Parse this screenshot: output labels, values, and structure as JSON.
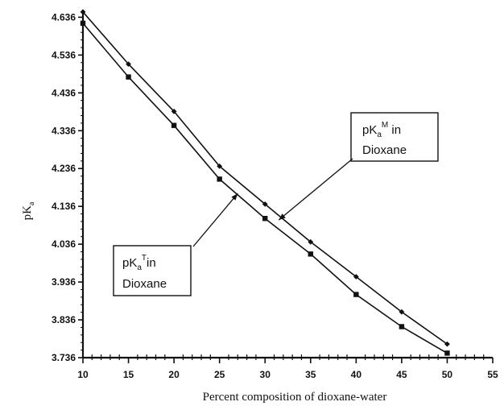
{
  "chart_data": {
    "type": "line",
    "xlabel": "Percent composition of dioxane-water",
    "ylabel": "pK",
    "ylabel_sub": "a",
    "xlim": [
      10,
      55
    ],
    "ylim": [
      3.736,
      4.656
    ],
    "xticks": [
      10,
      15,
      20,
      25,
      30,
      35,
      40,
      45,
      50,
      55
    ],
    "yticks": [
      3.736,
      3.836,
      3.936,
      4.036,
      4.136,
      4.236,
      4.336,
      4.436,
      4.536,
      4.636
    ],
    "ytick_labels": [
      "3.736",
      "3.836",
      "3.936",
      "4.036",
      "4.136",
      "4.236",
      "4.336",
      "4.436",
      "4.536",
      "4.636"
    ],
    "grid": false,
    "series": [
      {
        "key": "M",
        "marker": "diamond",
        "x": [
          10,
          15,
          20,
          25,
          30,
          35,
          40,
          45,
          50
        ],
        "values": [
          4.65,
          4.512,
          4.387,
          4.242,
          4.142,
          4.042,
          3.95,
          3.857,
          3.772
        ]
      },
      {
        "key": "T",
        "marker": "square",
        "x": [
          10,
          15,
          20,
          25,
          30,
          35,
          40,
          45,
          50
        ],
        "values": [
          4.62,
          4.478,
          4.35,
          4.208,
          4.104,
          4.01,
          3.903,
          3.818,
          3.748
        ]
      }
    ],
    "annotations": [
      {
        "series": "M",
        "line1_main": "pK",
        "line1_sub": "a",
        "line1_sup": "M",
        "line1_tail": " in",
        "line2": "Dioxane",
        "arrow_to": [
          31.5,
          4.1
        ]
      },
      {
        "series": "T",
        "line1_main": "pK",
        "line1_sub": "a",
        "line1_sup": "T",
        "line1_tail": "in",
        "line2": "Dioxane",
        "arrow_to": [
          27.0,
          4.17
        ]
      }
    ]
  }
}
